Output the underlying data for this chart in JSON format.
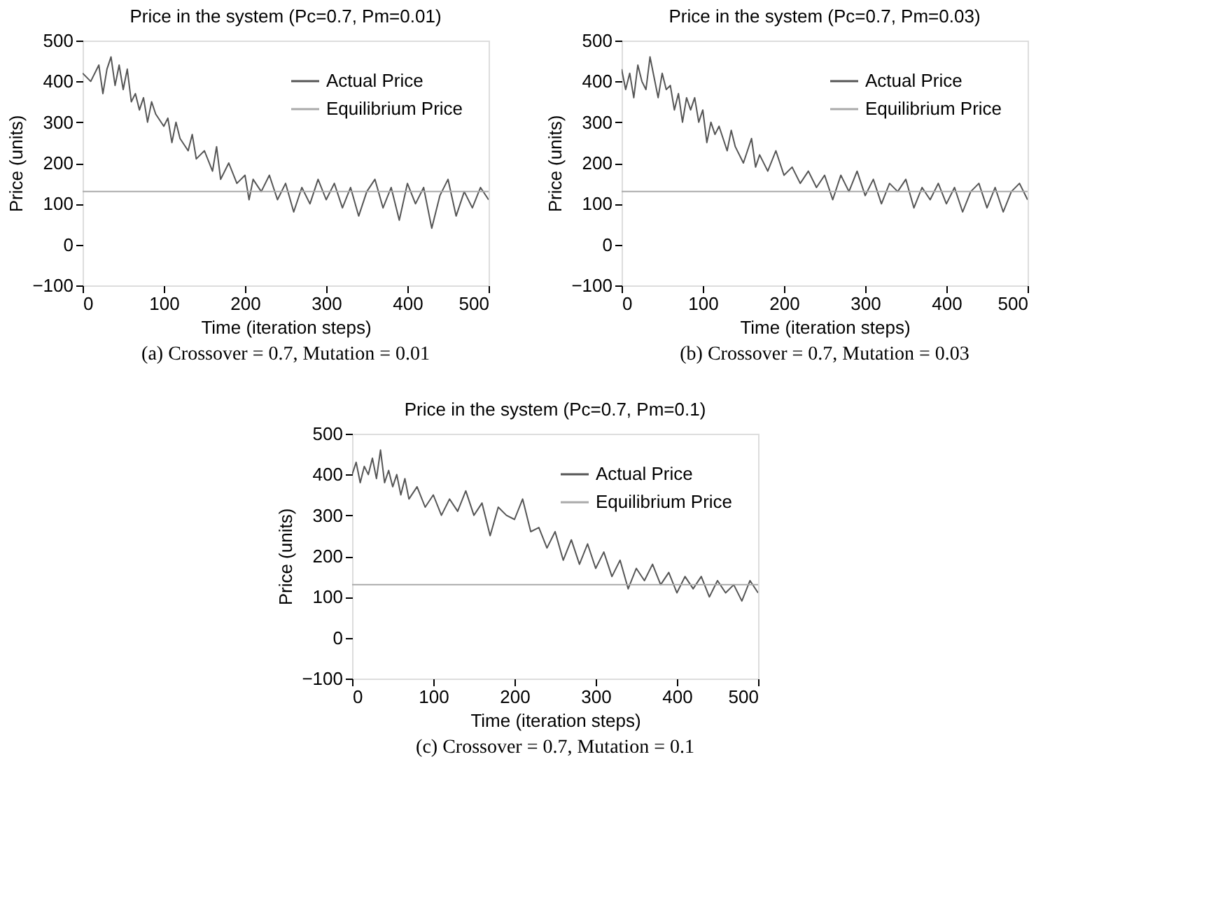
{
  "chart_data": [
    {
      "type": "line",
      "title": "Price in the system (Pc=0.7, Pm=0.01)",
      "xlabel": "Time (iteration steps)",
      "ylabel": "Price (units)",
      "xlim": [
        0,
        500
      ],
      "xticks": [
        0,
        100,
        200,
        300,
        400,
        500
      ],
      "ylim": [
        -100,
        500
      ],
      "yticks": [
        -100,
        0,
        100,
        200,
        300,
        400,
        500
      ],
      "legend": "top right",
      "grid": false,
      "marker": "none",
      "line_style": "solid",
      "annotations": [
        "(a)  Crossover = 0.7, Mutation = 0.01"
      ],
      "series": [
        {
          "name": "Actual Price",
          "color": "#555555",
          "x": [
            0,
            10,
            20,
            25,
            30,
            35,
            40,
            45,
            50,
            55,
            60,
            65,
            70,
            75,
            80,
            85,
            90,
            100,
            105,
            110,
            115,
            120,
            130,
            135,
            140,
            150,
            160,
            165,
            170,
            180,
            190,
            200,
            205,
            210,
            220,
            230,
            240,
            250,
            260,
            270,
            280,
            290,
            300,
            310,
            320,
            330,
            340,
            350,
            360,
            370,
            380,
            390,
            400,
            410,
            420,
            430,
            440,
            450,
            460,
            470,
            480,
            490,
            500
          ],
          "values": [
            420,
            400,
            440,
            370,
            430,
            460,
            390,
            440,
            380,
            430,
            350,
            370,
            330,
            360,
            300,
            350,
            320,
            290,
            310,
            250,
            300,
            260,
            230,
            270,
            210,
            230,
            180,
            240,
            160,
            200,
            150,
            170,
            110,
            160,
            130,
            170,
            110,
            150,
            80,
            140,
            100,
            160,
            110,
            150,
            90,
            140,
            70,
            130,
            160,
            90,
            140,
            60,
            150,
            100,
            140,
            40,
            120,
            160,
            70,
            130,
            90,
            140,
            110
          ]
        },
        {
          "name": "Equilibrium Price",
          "color": "#aaaaaa",
          "x": [
            0,
            500
          ],
          "values": [
            130,
            130
          ]
        }
      ]
    },
    {
      "type": "line",
      "title": "Price in the system (Pc=0.7, Pm=0.03)",
      "xlabel": "Time (iteration steps)",
      "ylabel": "Price (units)",
      "xlim": [
        0,
        500
      ],
      "xticks": [
        0,
        100,
        200,
        300,
        400,
        500
      ],
      "ylim": [
        -100,
        500
      ],
      "yticks": [
        -100,
        0,
        100,
        200,
        300,
        400,
        500
      ],
      "legend": "top right",
      "grid": false,
      "marker": "none",
      "line_style": "solid",
      "annotations": [
        "(b)  Crossover = 0.7, Mutation = 0.03"
      ],
      "series": [
        {
          "name": "Actual Price",
          "color": "#555555",
          "x": [
            0,
            5,
            10,
            15,
            20,
            25,
            30,
            35,
            40,
            45,
            50,
            55,
            60,
            65,
            70,
            75,
            80,
            85,
            90,
            95,
            100,
            105,
            110,
            115,
            120,
            130,
            135,
            140,
            150,
            160,
            165,
            170,
            180,
            190,
            200,
            210,
            220,
            230,
            240,
            250,
            260,
            270,
            280,
            290,
            300,
            310,
            320,
            330,
            340,
            350,
            360,
            370,
            380,
            390,
            400,
            410,
            420,
            430,
            440,
            450,
            460,
            470,
            480,
            490,
            500
          ],
          "values": [
            430,
            380,
            420,
            360,
            440,
            400,
            380,
            460,
            410,
            360,
            420,
            380,
            390,
            330,
            370,
            300,
            360,
            330,
            360,
            300,
            330,
            250,
            300,
            270,
            290,
            230,
            280,
            240,
            200,
            260,
            190,
            220,
            180,
            230,
            170,
            190,
            150,
            180,
            140,
            170,
            110,
            170,
            130,
            180,
            120,
            160,
            100,
            150,
            130,
            160,
            90,
            140,
            110,
            150,
            100,
            140,
            80,
            130,
            150,
            90,
            140,
            80,
            130,
            150,
            110
          ]
        },
        {
          "name": "Equilibrium Price",
          "color": "#aaaaaa",
          "x": [
            0,
            500
          ],
          "values": [
            130,
            130
          ]
        }
      ]
    },
    {
      "type": "line",
      "title": "Price in the system (Pc=0.7, Pm=0.1)",
      "xlabel": "Time (iteration steps)",
      "ylabel": "Price (units)",
      "xlim": [
        0,
        500
      ],
      "xticks": [
        0,
        100,
        200,
        300,
        400,
        500
      ],
      "ylim": [
        -100,
        500
      ],
      "yticks": [
        -100,
        0,
        100,
        200,
        300,
        400,
        500
      ],
      "legend": "top right",
      "grid": false,
      "marker": "none",
      "line_style": "solid",
      "annotations": [
        "(c)  Crossover = 0.7, Mutation = 0.1"
      ],
      "series": [
        {
          "name": "Actual Price",
          "color": "#555555",
          "x": [
            0,
            5,
            10,
            15,
            20,
            25,
            30,
            35,
            40,
            45,
            50,
            55,
            60,
            65,
            70,
            80,
            90,
            100,
            110,
            120,
            130,
            140,
            150,
            160,
            170,
            180,
            190,
            200,
            210,
            220,
            230,
            240,
            250,
            260,
            270,
            280,
            290,
            300,
            310,
            320,
            330,
            340,
            350,
            360,
            370,
            380,
            390,
            400,
            410,
            420,
            430,
            440,
            450,
            460,
            470,
            480,
            490,
            500
          ],
          "values": [
            400,
            430,
            380,
            420,
            400,
            440,
            390,
            460,
            380,
            410,
            370,
            400,
            350,
            390,
            340,
            370,
            320,
            350,
            300,
            340,
            310,
            360,
            300,
            330,
            250,
            320,
            300,
            290,
            340,
            260,
            270,
            220,
            260,
            190,
            240,
            180,
            230,
            170,
            210,
            150,
            190,
            120,
            170,
            140,
            180,
            130,
            160,
            110,
            150,
            120,
            150,
            100,
            140,
            110,
            130,
            90,
            140,
            110
          ]
        },
        {
          "name": "Equilibrium Price",
          "color": "#aaaaaa",
          "x": [
            0,
            500
          ],
          "values": [
            130,
            130
          ]
        }
      ]
    }
  ]
}
